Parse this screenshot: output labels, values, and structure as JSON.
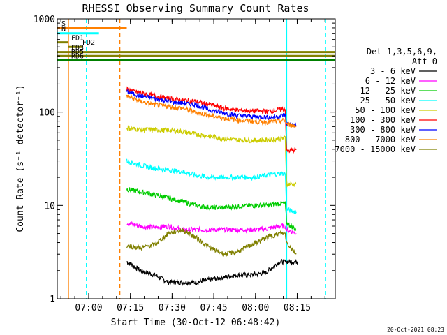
{
  "chart_data": {
    "type": "line",
    "title": "RHESSI Observing Summary Count Rates",
    "ylabel": "Count Rate (s⁻¹ detector⁻¹)",
    "xlabel": "Start Time (30-Oct-12 06:48:42)",
    "footer_date": "20-Oct-2021 08:23",
    "y_scale": "log",
    "ylim": [
      1,
      1000
    ],
    "xlim_minutes": [
      0,
      100
    ],
    "x_ticks": [
      {
        "minute": 11.3,
        "label": "07:00"
      },
      {
        "minute": 26.3,
        "label": "07:15"
      },
      {
        "minute": 41.3,
        "label": "07:30"
      },
      {
        "minute": 56.3,
        "label": "07:45"
      },
      {
        "minute": 71.3,
        "label": "08:00"
      },
      {
        "minute": 86.3,
        "label": "08:15"
      }
    ],
    "y_ticks": [
      {
        "value": 1,
        "label": "1"
      },
      {
        "value": 10,
        "label": "10"
      },
      {
        "value": 100,
        "label": "100"
      },
      {
        "value": 1000,
        "label": "1000"
      }
    ],
    "legend": {
      "header1": "Det 1,3,5,6,9,",
      "header2": "Att 0",
      "position": "right"
    },
    "series": [
      {
        "name": "3 - 6 keV",
        "color": "#000000",
        "points": [
          [
            25,
            2.5
          ],
          [
            30,
            2.0
          ],
          [
            35,
            1.8
          ],
          [
            40,
            1.5
          ],
          [
            45,
            1.5
          ],
          [
            50,
            1.5
          ],
          [
            55,
            1.6
          ],
          [
            60,
            1.7
          ],
          [
            65,
            1.8
          ],
          [
            70,
            1.8
          ],
          [
            75,
            1.9
          ],
          [
            80,
            2.5
          ],
          [
            86.5,
            2.5
          ]
        ]
      },
      {
        "name": "6 - 12 keV",
        "color": "#ff00ff",
        "points": [
          [
            25,
            6.5
          ],
          [
            30,
            6.0
          ],
          [
            35,
            5.8
          ],
          [
            40,
            6.0
          ],
          [
            45,
            5.5
          ],
          [
            50,
            5.5
          ],
          [
            55,
            5.5
          ],
          [
            60,
            5.5
          ],
          [
            65,
            5.5
          ],
          [
            70,
            5.5
          ],
          [
            75,
            5.6
          ],
          [
            80,
            6.0
          ],
          [
            82,
            6.0
          ],
          [
            82.5,
            5.5
          ],
          [
            86,
            5.0
          ]
        ]
      },
      {
        "name": "12 - 25 keV",
        "color": "#00cc00",
        "points": [
          [
            25,
            15
          ],
          [
            30,
            14
          ],
          [
            35,
            13
          ],
          [
            40,
            12
          ],
          [
            45,
            11
          ],
          [
            50,
            10
          ],
          [
            55,
            9.5
          ],
          [
            60,
            9.5
          ],
          [
            65,
            9.8
          ],
          [
            70,
            10
          ],
          [
            75,
            10
          ],
          [
            80,
            10.5
          ],
          [
            82,
            10.5
          ],
          [
            82.5,
            6.5
          ],
          [
            86,
            5.5
          ]
        ]
      },
      {
        "name": "25 - 50 keV",
        "color": "#00ffff",
        "points": [
          [
            25,
            30
          ],
          [
            30,
            27
          ],
          [
            35,
            25
          ],
          [
            40,
            24
          ],
          [
            45,
            23
          ],
          [
            50,
            21
          ],
          [
            55,
            20
          ],
          [
            60,
            20
          ],
          [
            65,
            20
          ],
          [
            70,
            20
          ],
          [
            75,
            21
          ],
          [
            80,
            22
          ],
          [
            82,
            22
          ],
          [
            82.5,
            9.0
          ],
          [
            86,
            8.5
          ]
        ]
      },
      {
        "name": "50 - 100 keV",
        "color": "#cccc00",
        "points": [
          [
            25,
            68
          ],
          [
            30,
            65
          ],
          [
            35,
            65
          ],
          [
            40,
            64
          ],
          [
            45,
            62
          ],
          [
            50,
            58
          ],
          [
            55,
            55
          ],
          [
            60,
            52
          ],
          [
            65,
            50
          ],
          [
            70,
            50
          ],
          [
            75,
            50
          ],
          [
            80,
            52
          ],
          [
            82,
            53
          ],
          [
            82.5,
            17
          ],
          [
            86,
            17
          ]
        ]
      },
      {
        "name": "100 - 300 keV",
        "color": "#ff0000",
        "points": [
          [
            25,
            175
          ],
          [
            30,
            160
          ],
          [
            35,
            150
          ],
          [
            40,
            140
          ],
          [
            45,
            135
          ],
          [
            50,
            130
          ],
          [
            55,
            120
          ],
          [
            60,
            110
          ],
          [
            65,
            105
          ],
          [
            70,
            103
          ],
          [
            75,
            102
          ],
          [
            80,
            106
          ],
          [
            82,
            110
          ],
          [
            82.5,
            38
          ],
          [
            86,
            40
          ]
        ]
      },
      {
        "name": "300 - 800 keV",
        "color": "#0000ff",
        "points": [
          [
            25,
            165
          ],
          [
            30,
            150
          ],
          [
            35,
            140
          ],
          [
            40,
            130
          ],
          [
            45,
            125
          ],
          [
            50,
            120
          ],
          [
            55,
            105
          ],
          [
            60,
            98
          ],
          [
            65,
            92
          ],
          [
            70,
            90
          ],
          [
            75,
            88
          ],
          [
            80,
            90
          ],
          [
            82,
            95
          ],
          [
            82.5,
            75
          ],
          [
            86,
            72
          ]
        ]
      },
      {
        "name": "800 - 7000 keV",
        "color": "#ff8000",
        "points": [
          [
            25,
            150
          ],
          [
            30,
            130
          ],
          [
            35,
            120
          ],
          [
            40,
            115
          ],
          [
            45,
            110
          ],
          [
            50,
            100
          ],
          [
            55,
            92
          ],
          [
            60,
            86
          ],
          [
            65,
            82
          ],
          [
            70,
            80
          ],
          [
            75,
            78
          ],
          [
            80,
            80
          ],
          [
            82,
            82
          ],
          [
            82.5,
            75
          ],
          [
            86,
            70
          ]
        ]
      },
      {
        "name": "7000 - 15000 keV",
        "color": "#808000",
        "points": [
          [
            25,
            3.7
          ],
          [
            30,
            3.5
          ],
          [
            35,
            3.8
          ],
          [
            40,
            5.0
          ],
          [
            45,
            5.5
          ],
          [
            50,
            4.5
          ],
          [
            55,
            3.5
          ],
          [
            60,
            3.0
          ],
          [
            65,
            3.2
          ],
          [
            70,
            3.8
          ],
          [
            75,
            4.5
          ],
          [
            80,
            5.0
          ],
          [
            82,
            5.0
          ],
          [
            82.5,
            4.0
          ],
          [
            86,
            3.0
          ]
        ]
      }
    ],
    "state_bars": [
      {
        "label": "S",
        "color": "#ff8000",
        "label_color": "#ff8000",
        "start": 0,
        "end": 25,
        "value": 800
      },
      {
        "label": "N",
        "color": "#00ffff",
        "label_color": "#00ffff",
        "start": 0,
        "end": 15,
        "value": 700
      },
      {
        "label": "FD1",
        "color": "#808000",
        "label_color": "#808000",
        "start": 0,
        "end": 4,
        "value": 560
      },
      {
        "label": "FD2",
        "color": "#808000",
        "label_color": "#808000",
        "start": 4,
        "end": 9,
        "value": 500
      },
      {
        "label": "FD3",
        "color": "#808000",
        "label_color": "#808000",
        "start": 0,
        "end": 100,
        "value": 440
      },
      {
        "label": "RD5",
        "color": "#808000",
        "label_color": "#808000",
        "start": 0,
        "end": 100,
        "value": 400
      },
      {
        "label": "RD6",
        "color": "#008000",
        "label_color": "#008000",
        "start": 0,
        "end": 100,
        "value": 360
      }
    ],
    "marker_lines": [
      {
        "minute": 4,
        "color": "#ff8000",
        "style": "solid"
      },
      {
        "minute": 10.5,
        "color": "#00ffff",
        "style": "dashed"
      },
      {
        "minute": 22.5,
        "color": "#ff8000",
        "style": "dashed"
      },
      {
        "minute": 82.5,
        "color": "#00ffff",
        "style": "solid"
      },
      {
        "minute": 96.5,
        "color": "#00ffff",
        "style": "dashed"
      }
    ]
  }
}
